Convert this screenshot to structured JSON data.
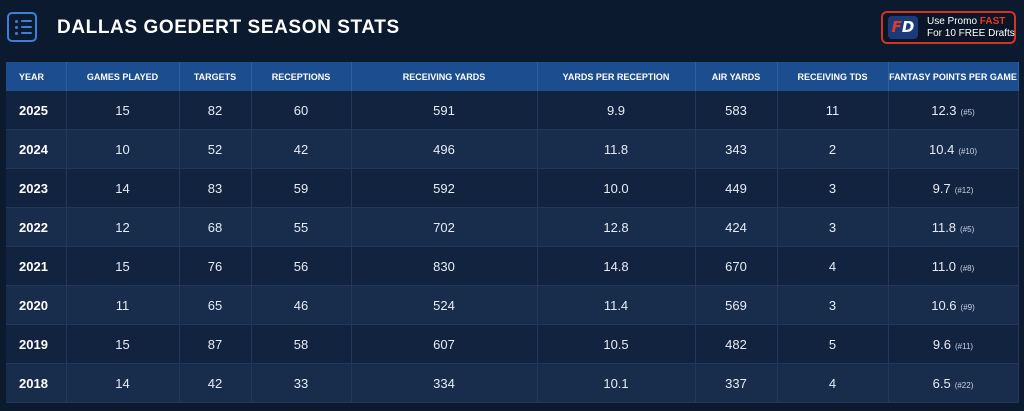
{
  "header": {
    "title": "DALLAS GOEDERT SEASON STATS",
    "icon": "list-icon"
  },
  "promo": {
    "logo_f": "F",
    "logo_d": "D",
    "line1_prefix": "Use Promo",
    "line1_code": "FAST",
    "line2": "For 10 FREE Drafts",
    "accent_color": "#e23b22"
  },
  "table": {
    "columns": [
      "YEAR",
      "GAMES PLAYED",
      "TARGETS",
      "RECEPTIONS",
      "RECEIVING YARDS",
      "YARDS PER RECEPTION",
      "AIR YARDS",
      "RECEIVING TDS",
      "FANTASY POINTS PER GAME"
    ],
    "rows": [
      {
        "year": "2025",
        "games": "15",
        "targets": "82",
        "receptions": "60",
        "yards": "591",
        "ypr": "9.9",
        "air_yards": "583",
        "tds": "11",
        "fppg": "12.3",
        "rank": "(#5)"
      },
      {
        "year": "2024",
        "games": "10",
        "targets": "52",
        "receptions": "42",
        "yards": "496",
        "ypr": "11.8",
        "air_yards": "343",
        "tds": "2",
        "fppg": "10.4",
        "rank": "(#10)"
      },
      {
        "year": "2023",
        "games": "14",
        "targets": "83",
        "receptions": "59",
        "yards": "592",
        "ypr": "10.0",
        "air_yards": "449",
        "tds": "3",
        "fppg": "9.7",
        "rank": "(#12)"
      },
      {
        "year": "2022",
        "games": "12",
        "targets": "68",
        "receptions": "55",
        "yards": "702",
        "ypr": "12.8",
        "air_yards": "424",
        "tds": "3",
        "fppg": "11.8",
        "rank": "(#5)"
      },
      {
        "year": "2021",
        "games": "15",
        "targets": "76",
        "receptions": "56",
        "yards": "830",
        "ypr": "14.8",
        "air_yards": "670",
        "tds": "4",
        "fppg": "11.0",
        "rank": "(#8)"
      },
      {
        "year": "2020",
        "games": "11",
        "targets": "65",
        "receptions": "46",
        "yards": "524",
        "ypr": "11.4",
        "air_yards": "569",
        "tds": "3",
        "fppg": "10.6",
        "rank": "(#9)"
      },
      {
        "year": "2019",
        "games": "15",
        "targets": "87",
        "receptions": "58",
        "yards": "607",
        "ypr": "10.5",
        "air_yards": "482",
        "tds": "5",
        "fppg": "9.6",
        "rank": "(#11)"
      },
      {
        "year": "2018",
        "games": "14",
        "targets": "42",
        "receptions": "33",
        "yards": "334",
        "ypr": "10.1",
        "air_yards": "337",
        "tds": "4",
        "fppg": "6.5",
        "rank": "(#22)"
      }
    ]
  }
}
